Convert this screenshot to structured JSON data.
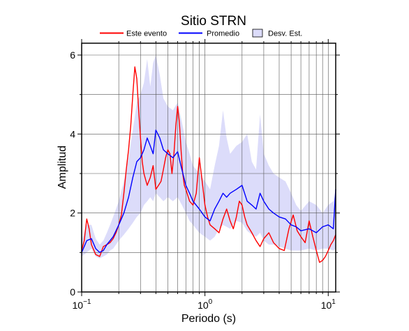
{
  "chart_data": {
    "type": "line",
    "title": "Sitio STRN",
    "xlabel": "Periodo (s)",
    "ylabel": "Amplitud",
    "x_scale": "log",
    "xlim": [
      0.1,
      11.5
    ],
    "ylim": [
      0,
      6.3
    ],
    "x_tick_labels": [
      {
        "value": 0.1,
        "base": "10",
        "exp": "−1"
      },
      {
        "value": 1,
        "base": "10",
        "exp": "0"
      },
      {
        "value": 10,
        "base": "10",
        "exp": "1"
      }
    ],
    "y_ticks": [
      0,
      2,
      4,
      6
    ],
    "y_tick_labels": [
      "0",
      "2",
      "4",
      "6"
    ],
    "grid": true,
    "legend_position": "top",
    "legend": [
      {
        "label": "Este evento",
        "kind": "line",
        "color": "#ff0000"
      },
      {
        "label": "Promedio",
        "kind": "line",
        "color": "#0000ff"
      },
      {
        "label": "Desv. Est.",
        "kind": "band",
        "color": "#dcdcfa"
      }
    ],
    "series": [
      {
        "name": "Este evento",
        "color": "#ff0000",
        "x": [
          0.1,
          0.105,
          0.11,
          0.115,
          0.12,
          0.13,
          0.14,
          0.15,
          0.16,
          0.17,
          0.18,
          0.19,
          0.2,
          0.21,
          0.22,
          0.23,
          0.24,
          0.25,
          0.26,
          0.27,
          0.28,
          0.29,
          0.3,
          0.31,
          0.32,
          0.34,
          0.36,
          0.38,
          0.4,
          0.42,
          0.44,
          0.46,
          0.48,
          0.5,
          0.52,
          0.54,
          0.56,
          0.58,
          0.6,
          0.62,
          0.64,
          0.66,
          0.68,
          0.7,
          0.75,
          0.8,
          0.85,
          0.9,
          0.95,
          1.0,
          1.05,
          1.1,
          1.2,
          1.3,
          1.4,
          1.5,
          1.6,
          1.7,
          1.8,
          1.9,
          2.0,
          2.1,
          2.2,
          2.4,
          2.6,
          2.8,
          3.0,
          3.3,
          3.6,
          4.0,
          4.4,
          4.8,
          5.2,
          5.6,
          6.0,
          6.5,
          7.0,
          7.5,
          8.0,
          8.5,
          9.0,
          9.5,
          10.0,
          10.5,
          11.0,
          11.5
        ],
        "values": [
          1.05,
          1.3,
          1.85,
          1.6,
          1.2,
          0.95,
          0.9,
          1.15,
          1.2,
          1.25,
          1.35,
          1.5,
          1.7,
          1.95,
          2.5,
          3.1,
          3.6,
          4.2,
          5.0,
          5.7,
          5.4,
          4.6,
          3.9,
          3.3,
          3.0,
          2.7,
          2.9,
          3.2,
          2.6,
          2.7,
          2.8,
          3.1,
          3.4,
          3.6,
          3.5,
          3.0,
          3.5,
          4.2,
          4.7,
          4.3,
          3.6,
          3.0,
          2.7,
          2.6,
          2.3,
          2.2,
          2.5,
          3.4,
          2.8,
          2.2,
          1.9,
          1.7,
          1.6,
          1.5,
          1.85,
          2.1,
          1.8,
          1.6,
          1.9,
          2.3,
          2.2,
          1.9,
          1.7,
          1.5,
          1.3,
          1.15,
          1.35,
          1.5,
          1.25,
          1.1,
          1.05,
          1.6,
          1.95,
          1.55,
          1.4,
          1.25,
          1.8,
          1.4,
          1.05,
          0.75,
          0.8,
          0.9,
          1.05,
          1.2,
          1.3,
          1.45
        ]
      },
      {
        "name": "Promedio",
        "color": "#0000ff",
        "x": [
          0.1,
          0.11,
          0.12,
          0.13,
          0.14,
          0.15,
          0.16,
          0.17,
          0.18,
          0.19,
          0.2,
          0.22,
          0.24,
          0.26,
          0.28,
          0.3,
          0.32,
          0.34,
          0.36,
          0.38,
          0.4,
          0.43,
          0.46,
          0.5,
          0.55,
          0.6,
          0.65,
          0.7,
          0.75,
          0.8,
          0.9,
          1.0,
          1.1,
          1.2,
          1.3,
          1.4,
          1.5,
          1.6,
          1.8,
          2.0,
          2.2,
          2.4,
          2.6,
          2.8,
          3.0,
          3.3,
          3.6,
          4.0,
          4.5,
          5.0,
          5.5,
          6.0,
          7.0,
          8.0,
          9.0,
          10.0,
          11.0,
          11.5
        ],
        "values": [
          1.0,
          1.3,
          1.35,
          1.1,
          1.0,
          1.05,
          1.2,
          1.3,
          1.4,
          1.55,
          1.7,
          2.0,
          2.4,
          2.9,
          3.3,
          3.4,
          3.6,
          3.9,
          3.7,
          3.5,
          4.1,
          3.9,
          3.6,
          3.5,
          3.4,
          3.55,
          3.1,
          2.7,
          2.5,
          2.3,
          2.1,
          1.9,
          1.8,
          2.1,
          2.3,
          2.5,
          2.4,
          2.5,
          2.6,
          2.7,
          2.3,
          2.2,
          2.1,
          2.5,
          2.3,
          2.1,
          2.0,
          1.9,
          1.85,
          1.7,
          1.65,
          1.55,
          1.6,
          1.5,
          1.65,
          1.7,
          1.6,
          2.6
        ]
      }
    ],
    "band": {
      "name": "Desv. Est.",
      "color": "#dcdcfa",
      "x": [
        0.1,
        0.11,
        0.12,
        0.13,
        0.14,
        0.15,
        0.16,
        0.17,
        0.18,
        0.19,
        0.2,
        0.22,
        0.24,
        0.26,
        0.28,
        0.3,
        0.32,
        0.34,
        0.36,
        0.38,
        0.4,
        0.43,
        0.46,
        0.5,
        0.55,
        0.6,
        0.65,
        0.7,
        0.75,
        0.8,
        0.9,
        1.0,
        1.1,
        1.2,
        1.3,
        1.4,
        1.5,
        1.6,
        1.8,
        2.0,
        2.2,
        2.4,
        2.6,
        2.8,
        3.0,
        3.3,
        3.6,
        4.0,
        4.5,
        5.0,
        5.5,
        6.0,
        7.0,
        8.0,
        9.0,
        10.0,
        11.0,
        11.5
      ],
      "upper": [
        1.3,
        1.7,
        1.7,
        1.35,
        1.2,
        1.3,
        1.5,
        1.7,
        1.9,
        2.1,
        2.3,
        2.8,
        3.4,
        4.1,
        4.8,
        5.0,
        5.3,
        5.9,
        5.2,
        5.8,
        6.0,
        5.5,
        4.9,
        4.7,
        4.6,
        4.8,
        4.3,
        3.8,
        3.5,
        3.2,
        3.0,
        2.8,
        2.6,
        3.2,
        3.7,
        4.6,
        3.9,
        3.5,
        3.7,
        3.8,
        4.0,
        3.3,
        3.1,
        4.5,
        3.5,
        3.2,
        3.0,
        2.9,
        2.8,
        2.5,
        2.2,
        2.05,
        2.3,
        2.2,
        2.0,
        2.2,
        2.3,
        2.5
      ],
      "lower": [
        0.9,
        1.0,
        1.1,
        0.9,
        0.85,
        0.9,
        0.95,
        1.05,
        1.1,
        1.2,
        1.3,
        1.45,
        1.6,
        1.75,
        1.9,
        2.0,
        2.2,
        2.3,
        2.4,
        2.3,
        2.5,
        2.4,
        2.3,
        2.4,
        2.3,
        2.4,
        2.2,
        2.0,
        1.8,
        1.7,
        1.5,
        1.4,
        1.3,
        1.4,
        1.6,
        1.7,
        1.65,
        1.6,
        1.8,
        1.75,
        1.55,
        1.45,
        1.4,
        1.5,
        1.3,
        1.2,
        1.2,
        1.15,
        1.1,
        1.05,
        1.05,
        1.05,
        1.1,
        1.05,
        1.1,
        1.1,
        1.05,
        1.1
      ]
    }
  }
}
